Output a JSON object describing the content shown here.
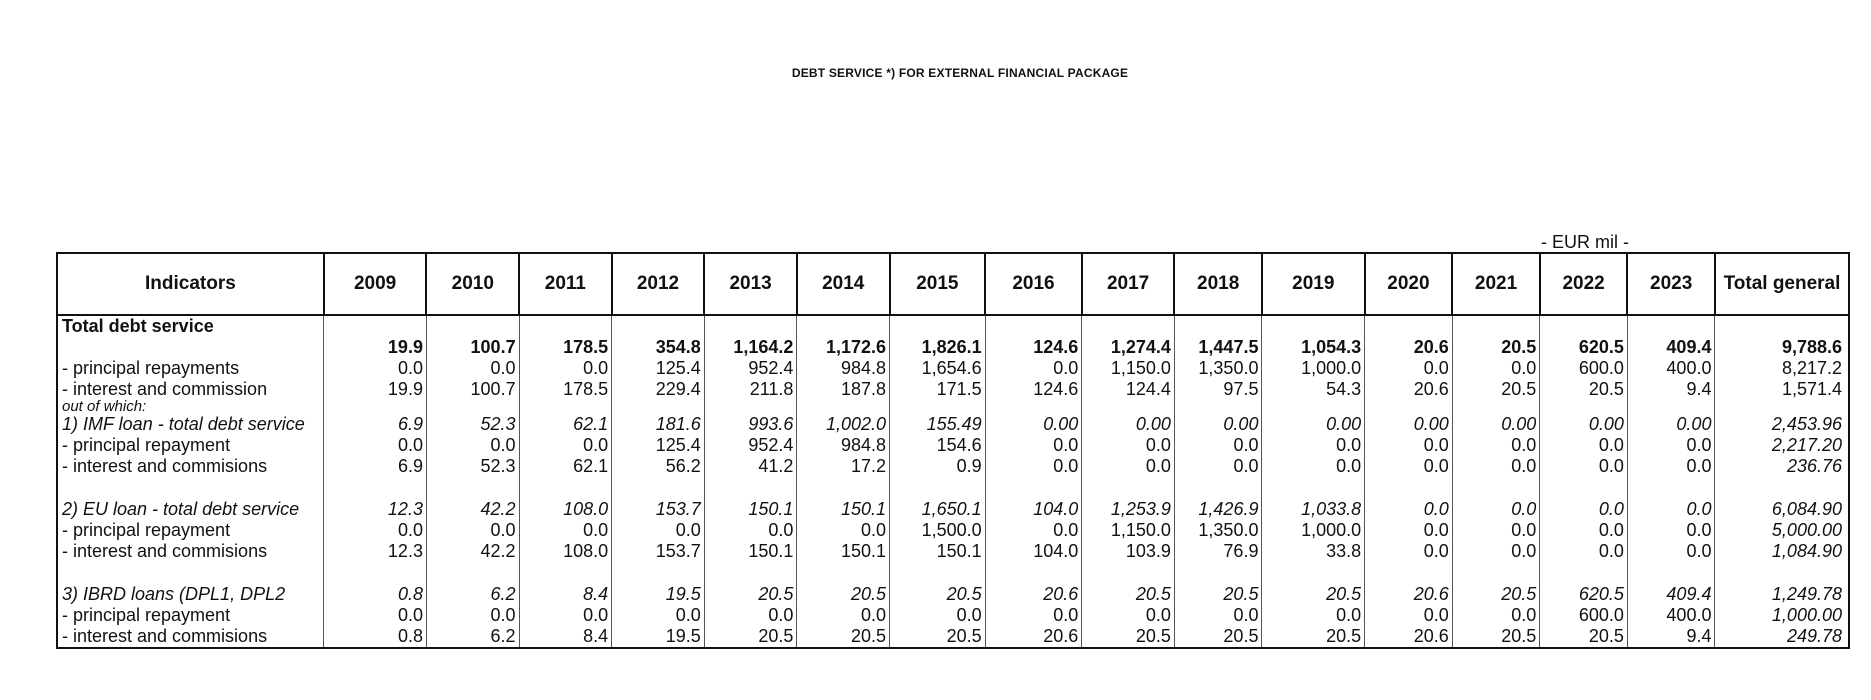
{
  "title": "DEBT SERVICE *) FOR EXTERNAL FINANCIAL PACKAGE",
  "unit": "- EUR mil -",
  "columns": [
    "Indicators",
    "2009",
    "2010",
    "2011",
    "2012",
    "2013",
    "2014",
    "2015",
    "2016",
    "2017",
    "2018",
    "2019",
    "2020",
    "2021",
    "2022",
    "2023",
    "Total general"
  ],
  "rows": [
    {
      "label": "Total debt service",
      "values": [
        "",
        "",
        "",
        "",
        "",
        "",
        "",
        "",
        "",
        "",
        "",
        "",
        "",
        "",
        "",
        ""
      ]
    },
    {
      "label": "",
      "values": [
        "19.9",
        "100.7",
        "178.5",
        "354.8",
        "1,164.2",
        "1,172.6",
        "1,826.1",
        "124.6",
        "1,274.4",
        "1,447.5",
        "1,054.3",
        "20.6",
        "20.5",
        "620.5",
        "409.4",
        "9,788.6"
      ]
    },
    {
      "label": "- principal repayments",
      "values": [
        "0.0",
        "0.0",
        "0.0",
        "125.4",
        "952.4",
        "984.8",
        "1,654.6",
        "0.0",
        "1,150.0",
        "1,350.0",
        "1,000.0",
        "0.0",
        "0.0",
        "600.0",
        "400.0",
        "8,217.2"
      ]
    },
    {
      "label": "- interest and commission",
      "values": [
        "19.9",
        "100.7",
        "178.5",
        "229.4",
        "211.8",
        "187.8",
        "171.5",
        "124.6",
        "124.4",
        "97.5",
        "54.3",
        "20.6",
        "20.5",
        "20.5",
        "9.4",
        "1,571.4"
      ]
    },
    {
      "label": "out of which:",
      "values": [
        "",
        "",
        "",
        "",
        "",
        "",
        "",
        "",
        "",
        "",
        "",
        "",
        "",
        "",
        "",
        ""
      ]
    },
    {
      "label": "1) IMF loan - total debt service",
      "values": [
        "6.9",
        "52.3",
        "62.1",
        "181.6",
        "993.6",
        "1,002.0",
        "155.49",
        "0.00",
        "0.00",
        "0.00",
        "0.00",
        "0.00",
        "0.00",
        "0.00",
        "0.00",
        "2,453.96"
      ]
    },
    {
      "label": "- principal repayment",
      "values": [
        "0.0",
        "0.0",
        "0.0",
        "125.4",
        "952.4",
        "984.8",
        "154.6",
        "0.0",
        "0.0",
        "0.0",
        "0.0",
        "0.0",
        "0.0",
        "0.0",
        "0.0",
        "2,217.20"
      ]
    },
    {
      "label": "- interest and commisions",
      "values": [
        "6.9",
        "52.3",
        "62.1",
        "56.2",
        "41.2",
        "17.2",
        "0.9",
        "0.0",
        "0.0",
        "0.0",
        "0.0",
        "0.0",
        "0.0",
        "0.0",
        "0.0",
        "236.76"
      ]
    },
    {
      "label": "",
      "values": [
        "",
        "",
        "",
        "",
        "",
        "",
        "",
        "",
        "",
        "",
        "",
        "",
        "",
        "",
        "",
        ""
      ]
    },
    {
      "label": "2) EU loan - total debt service",
      "values": [
        "12.3",
        "42.2",
        "108.0",
        "153.7",
        "150.1",
        "150.1",
        "1,650.1",
        "104.0",
        "1,253.9",
        "1,426.9",
        "1,033.8",
        "0.0",
        "0.0",
        "0.0",
        "0.0",
        "6,084.90"
      ]
    },
    {
      "label": "- principal repayment",
      "values": [
        "0.0",
        "0.0",
        "0.0",
        "0.0",
        "0.0",
        "0.0",
        "1,500.0",
        "0.0",
        "1,150.0",
        "1,350.0",
        "1,000.0",
        "0.0",
        "0.0",
        "0.0",
        "0.0",
        "5,000.00"
      ]
    },
    {
      "label": "- interest and commisions",
      "values": [
        "12.3",
        "42.2",
        "108.0",
        "153.7",
        "150.1",
        "150.1",
        "150.1",
        "104.0",
        "103.9",
        "76.9",
        "33.8",
        "0.0",
        "0.0",
        "0.0",
        "0.0",
        "1,084.90"
      ]
    },
    {
      "label": "",
      "values": [
        "",
        "",
        "",
        "",
        "",
        "",
        "",
        "",
        "",
        "",
        "",
        "",
        "",
        "",
        "",
        ""
      ]
    },
    {
      "label": "3) IBRD loans (DPL1, DPL2",
      "values": [
        "0.8",
        "6.2",
        "8.4",
        "19.5",
        "20.5",
        "20.5",
        "20.5",
        "20.6",
        "20.5",
        "20.5",
        "20.5",
        "20.6",
        "20.5",
        "620.5",
        "409.4",
        "1,249.78"
      ]
    },
    {
      "label": "- principal repayment",
      "values": [
        "0.0",
        "0.0",
        "0.0",
        "0.0",
        "0.0",
        "0.0",
        "0.0",
        "0.0",
        "0.0",
        "0.0",
        "0.0",
        "0.0",
        "0.0",
        "600.0",
        "400.0",
        "1,000.00"
      ]
    },
    {
      "label": "- interest and commisions",
      "values": [
        "0.8",
        "6.2",
        "8.4",
        "19.5",
        "20.5",
        "20.5",
        "20.5",
        "20.6",
        "20.5",
        "20.5",
        "20.5",
        "20.6",
        "20.5",
        "20.5",
        "9.4",
        "249.78"
      ]
    }
  ]
}
